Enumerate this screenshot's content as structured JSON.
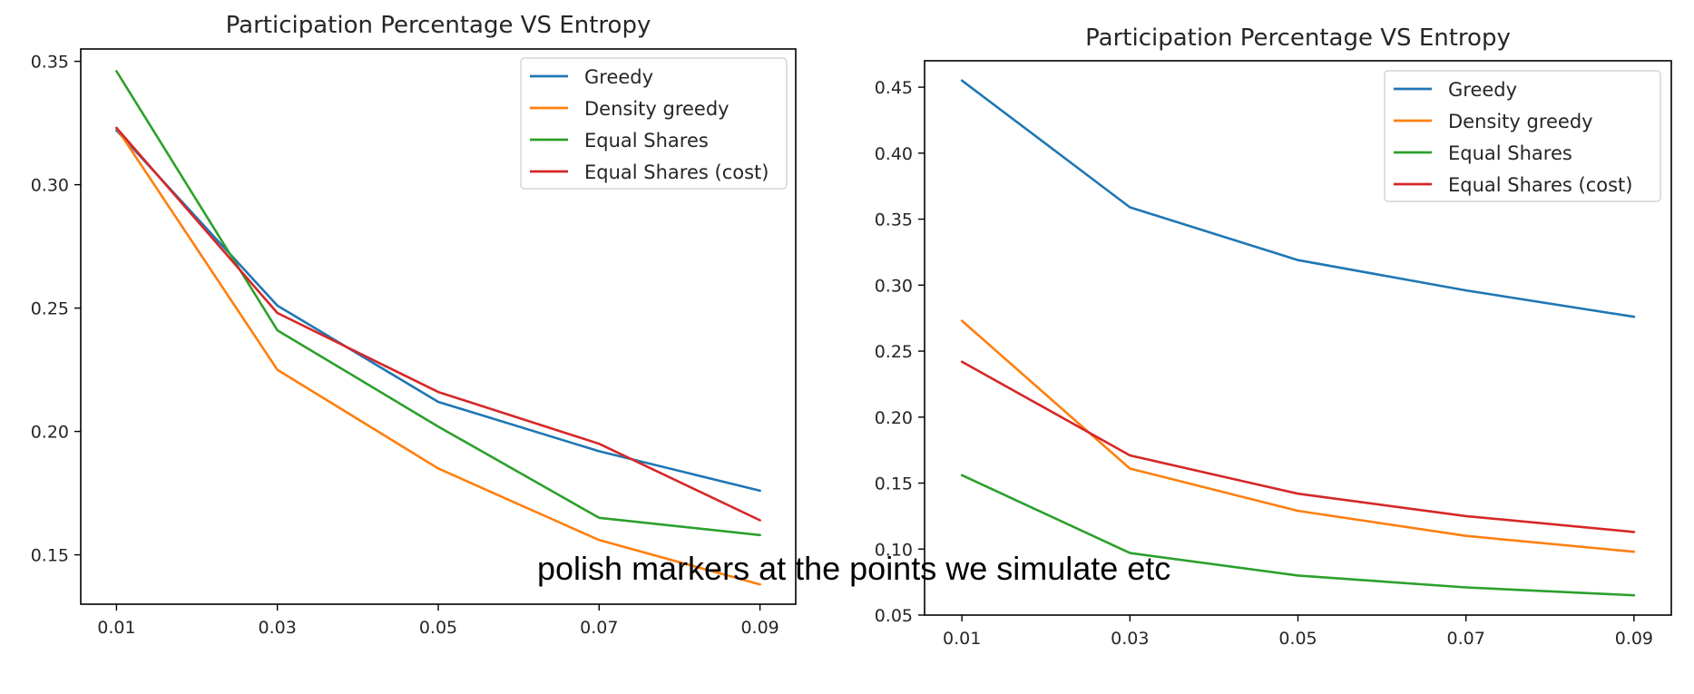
{
  "annotation": "polish markers at the points we simulate  etc",
  "chart_data": [
    {
      "type": "line",
      "title": "Participation Percentage VS Entropy",
      "xlabel": "",
      "ylabel": "",
      "x": [
        0.01,
        0.03,
        0.05,
        0.07,
        0.09
      ],
      "x_tick_labels": [
        "0.01",
        "0.03",
        "0.05",
        "0.07",
        "0.09"
      ],
      "ylim": [
        0.13,
        0.355
      ],
      "y_ticks": [
        0.15,
        0.2,
        0.25,
        0.3,
        0.35
      ],
      "y_tick_labels": [
        "0.15",
        "0.20",
        "0.25",
        "0.30",
        "0.35"
      ],
      "grid": false,
      "legend": "top-right",
      "series": [
        {
          "name": "Greedy",
          "color": "#1f77b4",
          "values": [
            0.322,
            0.251,
            0.212,
            0.192,
            0.176
          ]
        },
        {
          "name": "Density greedy",
          "color": "#ff7f0e",
          "values": [
            0.323,
            0.225,
            0.185,
            0.156,
            0.138
          ]
        },
        {
          "name": "Equal Shares",
          "color": "#2ca02c",
          "values": [
            0.346,
            0.241,
            0.202,
            0.165,
            0.158
          ]
        },
        {
          "name": "Equal Shares (cost)",
          "color": "#d62728",
          "values": [
            0.323,
            0.248,
            0.216,
            0.195,
            0.164
          ]
        }
      ]
    },
    {
      "type": "line",
      "title": "Participation Percentage VS Entropy",
      "xlabel": "",
      "ylabel": "",
      "x": [
        0.01,
        0.03,
        0.05,
        0.07,
        0.09
      ],
      "x_tick_labels": [
        "0.01",
        "0.03",
        "0.05",
        "0.07",
        "0.09"
      ],
      "ylim": [
        0.05,
        0.47
      ],
      "y_ticks": [
        0.05,
        0.1,
        0.15,
        0.2,
        0.25,
        0.3,
        0.35,
        0.4,
        0.45
      ],
      "y_tick_labels": [
        "0.05",
        "0.10",
        "0.15",
        "0.20",
        "0.25",
        "0.30",
        "0.35",
        "0.40",
        "0.45"
      ],
      "grid": false,
      "legend": "top-right",
      "series": [
        {
          "name": "Greedy",
          "color": "#1f77b4",
          "values": [
            0.455,
            0.359,
            0.319,
            0.296,
            0.276
          ]
        },
        {
          "name": "Density greedy",
          "color": "#ff7f0e",
          "values": [
            0.273,
            0.161,
            0.129,
            0.11,
            0.098
          ]
        },
        {
          "name": "Equal Shares",
          "color": "#2ca02c",
          "values": [
            0.156,
            0.097,
            0.08,
            0.071,
            0.065
          ]
        },
        {
          "name": "Equal Shares (cost)",
          "color": "#d62728",
          "values": [
            0.242,
            0.171,
            0.142,
            0.125,
            0.113
          ]
        }
      ]
    }
  ]
}
